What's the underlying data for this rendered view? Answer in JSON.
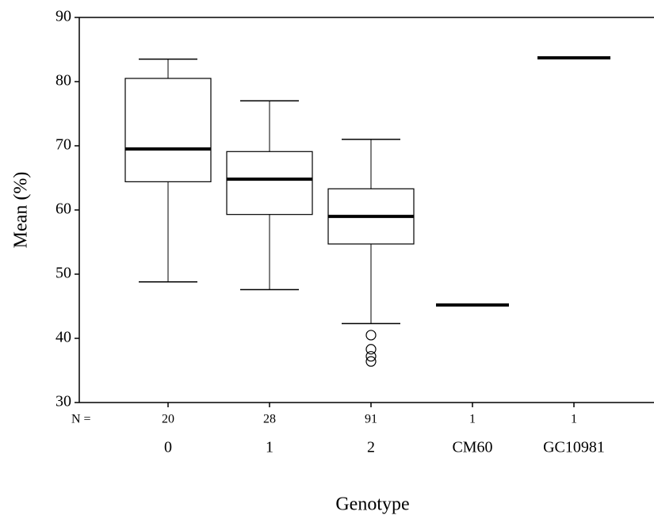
{
  "chart_data": {
    "type": "box",
    "x_label": "Genotype",
    "y_label": "Mean (%)",
    "categories": [
      "0",
      "1",
      "2",
      "CM60",
      "GC10981"
    ],
    "n_label": "N =",
    "n": [
      20,
      28,
      91,
      1,
      1
    ],
    "min": [
      48.8,
      47.6,
      42.3,
      null,
      null
    ],
    "q1": [
      64.4,
      59.3,
      54.7,
      null,
      null
    ],
    "median": [
      69.5,
      64.8,
      59,
      45.2,
      83.7
    ],
    "q3": [
      80.5,
      69.1,
      63.3,
      null,
      null
    ],
    "max": [
      83.5,
      77,
      71,
      null,
      null
    ],
    "outliers": [
      [],
      [],
      [
        40.5,
        38.3,
        37.2,
        36.4
      ],
      [],
      []
    ],
    "ylim": [
      30,
      90
    ],
    "yticks": [
      30,
      40,
      50,
      60,
      70,
      80,
      90
    ],
    "color": "#000000"
  }
}
